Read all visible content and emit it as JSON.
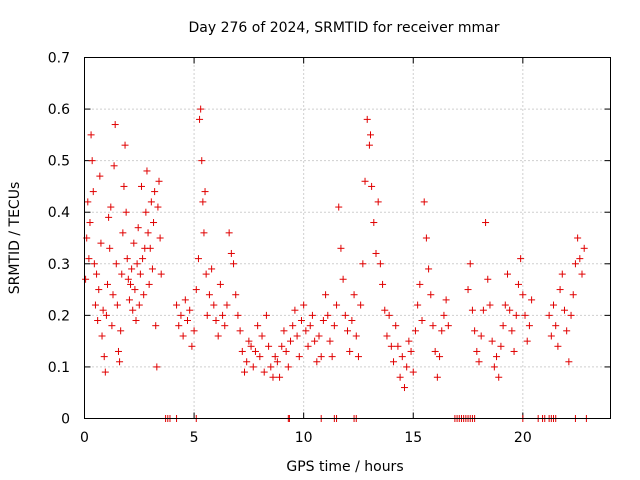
{
  "chart_data": {
    "type": "scatter",
    "title": "Day 276 of 2024, SRMTID for receiver mmar",
    "xlabel": "GPS time / hours",
    "ylabel": "SRMTID / TECUs",
    "xlim": [
      0,
      24
    ],
    "ylim": [
      0,
      0.7
    ],
    "xticks": [
      "0",
      "5",
      "10",
      "15",
      "20"
    ],
    "yticks": [
      "0",
      "0.1",
      "0.2",
      "0.3",
      "0.4",
      "0.5",
      "0.6",
      "0.7"
    ],
    "grid": true,
    "marker": "plus",
    "color": "#e00000",
    "series": [
      {
        "name": "SRMTID",
        "points": [
          [
            0.05,
            0.27
          ],
          [
            0.1,
            0.35
          ],
          [
            0.15,
            0.42
          ],
          [
            0.2,
            0.31
          ],
          [
            0.25,
            0.38
          ],
          [
            0.3,
            0.55
          ],
          [
            0.35,
            0.5
          ],
          [
            0.4,
            0.44
          ],
          [
            0.45,
            0.3
          ],
          [
            0.5,
            0.22
          ],
          [
            0.55,
            0.28
          ],
          [
            0.6,
            0.19
          ],
          [
            0.65,
            0.25
          ],
          [
            0.7,
            0.47
          ],
          [
            0.75,
            0.34
          ],
          [
            0.8,
            0.16
          ],
          [
            0.85,
            0.21
          ],
          [
            0.9,
            0.12
          ],
          [
            0.95,
            0.09
          ],
          [
            1.0,
            0.2
          ],
          [
            1.05,
            0.26
          ],
          [
            1.1,
            0.39
          ],
          [
            1.15,
            0.33
          ],
          [
            1.2,
            0.41
          ],
          [
            1.25,
            0.18
          ],
          [
            1.3,
            0.24
          ],
          [
            1.35,
            0.49
          ],
          [
            1.4,
            0.57
          ],
          [
            1.45,
            0.3
          ],
          [
            1.5,
            0.22
          ],
          [
            1.55,
            0.13
          ],
          [
            1.6,
            0.11
          ],
          [
            1.65,
            0.17
          ],
          [
            1.7,
            0.28
          ],
          [
            1.75,
            0.36
          ],
          [
            1.8,
            0.45
          ],
          [
            1.85,
            0.53
          ],
          [
            1.9,
            0.4
          ],
          [
            1.95,
            0.31
          ],
          [
            2.0,
            0.27
          ],
          [
            2.05,
            0.23
          ],
          [
            2.1,
            0.26
          ],
          [
            2.15,
            0.29
          ],
          [
            2.2,
            0.21
          ],
          [
            2.25,
            0.34
          ],
          [
            2.3,
            0.25
          ],
          [
            2.35,
            0.19
          ],
          [
            2.4,
            0.3
          ],
          [
            2.45,
            0.37
          ],
          [
            2.5,
            0.22
          ],
          [
            2.55,
            0.28
          ],
          [
            2.6,
            0.45
          ],
          [
            2.65,
            0.31
          ],
          [
            2.7,
            0.24
          ],
          [
            2.75,
            0.33
          ],
          [
            2.8,
            0.4
          ],
          [
            2.85,
            0.48
          ],
          [
            2.9,
            0.36
          ],
          [
            2.95,
            0.26
          ],
          [
            3.0,
            0.33
          ],
          [
            3.05,
            0.42
          ],
          [
            3.1,
            0.29
          ],
          [
            3.15,
            0.38
          ],
          [
            3.2,
            0.44
          ],
          [
            3.25,
            0.18
          ],
          [
            3.3,
            0.1
          ],
          [
            3.35,
            0.41
          ],
          [
            3.4,
            0.46
          ],
          [
            3.45,
            0.35
          ],
          [
            3.5,
            0.28
          ],
          [
            4.2,
            0.22
          ],
          [
            4.3,
            0.18
          ],
          [
            4.4,
            0.2
          ],
          [
            4.5,
            0.16
          ],
          [
            4.6,
            0.23
          ],
          [
            4.7,
            0.19
          ],
          [
            4.8,
            0.21
          ],
          [
            4.9,
            0.14
          ],
          [
            5.0,
            0.17
          ],
          [
            5.1,
            0.25
          ],
          [
            5.2,
            0.31
          ],
          [
            5.25,
            0.58
          ],
          [
            5.3,
            0.6
          ],
          [
            5.35,
            0.5
          ],
          [
            5.4,
            0.42
          ],
          [
            5.45,
            0.36
          ],
          [
            5.5,
            0.44
          ],
          [
            5.55,
            0.28
          ],
          [
            5.6,
            0.2
          ],
          [
            5.7,
            0.24
          ],
          [
            5.8,
            0.29
          ],
          [
            5.9,
            0.22
          ],
          [
            6.0,
            0.19
          ],
          [
            6.1,
            0.16
          ],
          [
            6.2,
            0.26
          ],
          [
            6.3,
            0.2
          ],
          [
            6.4,
            0.18
          ],
          [
            6.5,
            0.22
          ],
          [
            6.6,
            0.36
          ],
          [
            6.7,
            0.32
          ],
          [
            6.8,
            0.3
          ],
          [
            6.9,
            0.24
          ],
          [
            7.0,
            0.2
          ],
          [
            7.1,
            0.17
          ],
          [
            7.2,
            0.13
          ],
          [
            7.3,
            0.09
          ],
          [
            7.4,
            0.11
          ],
          [
            7.5,
            0.15
          ],
          [
            7.6,
            0.14
          ],
          [
            7.7,
            0.1
          ],
          [
            7.8,
            0.13
          ],
          [
            7.9,
            0.18
          ],
          [
            8.0,
            0.12
          ],
          [
            8.1,
            0.16
          ],
          [
            8.2,
            0.09
          ],
          [
            8.3,
            0.2
          ],
          [
            8.4,
            0.14
          ],
          [
            8.5,
            0.1
          ],
          [
            8.6,
            0.08
          ],
          [
            8.7,
            0.12
          ],
          [
            8.8,
            0.11
          ],
          [
            8.9,
            0.08
          ],
          [
            9.0,
            0.14
          ],
          [
            9.1,
            0.17
          ],
          [
            9.2,
            0.13
          ],
          [
            9.3,
            0.1
          ],
          [
            9.4,
            0.15
          ],
          [
            9.5,
            0.18
          ],
          [
            9.6,
            0.21
          ],
          [
            9.7,
            0.16
          ],
          [
            9.8,
            0.12
          ],
          [
            9.9,
            0.19
          ],
          [
            10.0,
            0.22
          ],
          [
            10.1,
            0.17
          ],
          [
            10.2,
            0.14
          ],
          [
            10.3,
            0.18
          ],
          [
            10.4,
            0.2
          ],
          [
            10.5,
            0.15
          ],
          [
            10.6,
            0.11
          ],
          [
            10.7,
            0.16
          ],
          [
            10.8,
            0.12
          ],
          [
            10.9,
            0.19
          ],
          [
            11.0,
            0.24
          ],
          [
            11.1,
            0.2
          ],
          [
            11.2,
            0.15
          ],
          [
            11.3,
            0.12
          ],
          [
            11.4,
            0.18
          ],
          [
            11.5,
            0.22
          ],
          [
            11.6,
            0.41
          ],
          [
            11.7,
            0.33
          ],
          [
            11.8,
            0.27
          ],
          [
            11.9,
            0.2
          ],
          [
            12.0,
            0.17
          ],
          [
            12.1,
            0.13
          ],
          [
            12.2,
            0.19
          ],
          [
            12.3,
            0.24
          ],
          [
            12.4,
            0.16
          ],
          [
            12.5,
            0.12
          ],
          [
            12.6,
            0.22
          ],
          [
            12.7,
            0.3
          ],
          [
            12.8,
            0.46
          ],
          [
            12.9,
            0.58
          ],
          [
            13.0,
            0.53
          ],
          [
            13.05,
            0.55
          ],
          [
            13.1,
            0.45
          ],
          [
            13.2,
            0.38
          ],
          [
            13.3,
            0.32
          ],
          [
            13.4,
            0.42
          ],
          [
            13.5,
            0.3
          ],
          [
            13.6,
            0.26
          ],
          [
            13.7,
            0.21
          ],
          [
            13.8,
            0.16
          ],
          [
            13.9,
            0.2
          ],
          [
            14.0,
            0.14
          ],
          [
            14.1,
            0.11
          ],
          [
            14.2,
            0.18
          ],
          [
            14.3,
            0.14
          ],
          [
            14.4,
            0.08
          ],
          [
            14.5,
            0.12
          ],
          [
            14.6,
            0.06
          ],
          [
            14.7,
            0.1
          ],
          [
            14.8,
            0.15
          ],
          [
            14.9,
            0.13
          ],
          [
            15.0,
            0.09
          ],
          [
            15.1,
            0.17
          ],
          [
            15.2,
            0.22
          ],
          [
            15.3,
            0.26
          ],
          [
            15.4,
            0.19
          ],
          [
            15.5,
            0.42
          ],
          [
            15.6,
            0.35
          ],
          [
            15.7,
            0.29
          ],
          [
            15.8,
            0.24
          ],
          [
            15.9,
            0.18
          ],
          [
            16.0,
            0.13
          ],
          [
            16.1,
            0.08
          ],
          [
            16.2,
            0.12
          ],
          [
            16.3,
            0.17
          ],
          [
            16.4,
            0.2
          ],
          [
            16.5,
            0.23
          ],
          [
            16.6,
            0.18
          ],
          [
            17.5,
            0.25
          ],
          [
            17.6,
            0.3
          ],
          [
            17.7,
            0.21
          ],
          [
            17.8,
            0.17
          ],
          [
            17.9,
            0.13
          ],
          [
            18.0,
            0.11
          ],
          [
            18.1,
            0.16
          ],
          [
            18.2,
            0.21
          ],
          [
            18.3,
            0.38
          ],
          [
            18.4,
            0.27
          ],
          [
            18.5,
            0.22
          ],
          [
            18.6,
            0.15
          ],
          [
            18.7,
            0.1
          ],
          [
            18.8,
            0.12
          ],
          [
            18.9,
            0.08
          ],
          [
            19.0,
            0.14
          ],
          [
            19.1,
            0.18
          ],
          [
            19.2,
            0.22
          ],
          [
            19.3,
            0.28
          ],
          [
            19.4,
            0.21
          ],
          [
            19.5,
            0.17
          ],
          [
            19.6,
            0.13
          ],
          [
            19.7,
            0.2
          ],
          [
            19.8,
            0.26
          ],
          [
            19.9,
            0.31
          ],
          [
            20.0,
            0.24
          ],
          [
            20.1,
            0.2
          ],
          [
            20.2,
            0.15
          ],
          [
            20.3,
            0.18
          ],
          [
            20.4,
            0.23
          ],
          [
            21.2,
            0.2
          ],
          [
            21.3,
            0.16
          ],
          [
            21.4,
            0.22
          ],
          [
            21.5,
            0.18
          ],
          [
            21.6,
            0.14
          ],
          [
            21.7,
            0.25
          ],
          [
            21.8,
            0.28
          ],
          [
            21.9,
            0.21
          ],
          [
            22.0,
            0.17
          ],
          [
            22.1,
            0.11
          ],
          [
            22.2,
            0.2
          ],
          [
            22.3,
            0.24
          ],
          [
            22.4,
            0.3
          ],
          [
            22.5,
            0.35
          ],
          [
            22.6,
            0.31
          ],
          [
            22.7,
            0.28
          ],
          [
            22.8,
            0.33
          ]
        ]
      }
    ],
    "zero_points": [
      3.7,
      3.8,
      3.9,
      4.2,
      5.1,
      9.3,
      9.35,
      10.8,
      11.4,
      11.5,
      12.3,
      12.4,
      16.9,
      17.0,
      17.1,
      17.2,
      17.3,
      17.4,
      17.5,
      17.6,
      17.7,
      17.8,
      20.0,
      20.7,
      20.9,
      21.0,
      21.2,
      21.3,
      21.4,
      21.5,
      22.4,
      22.9
    ]
  }
}
